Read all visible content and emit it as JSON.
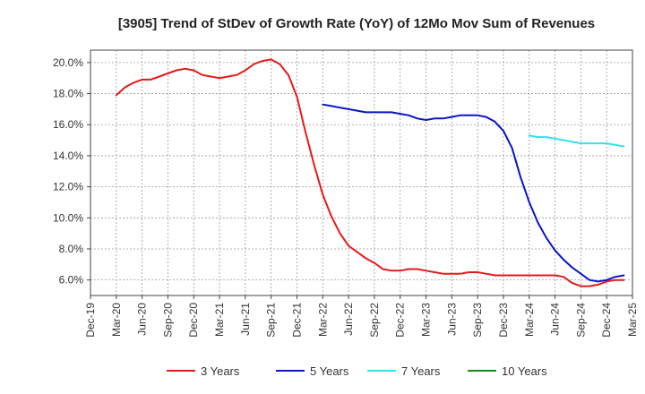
{
  "chart_data": {
    "type": "line",
    "title": "[3905]  Trend of StDev of Growth Rate (YoY) of 12Mo Mov Sum of Revenues",
    "xlabel": "",
    "ylabel": "",
    "ylim": [
      5.0,
      20.8
    ],
    "y_ticks": [
      6.0,
      8.0,
      10.0,
      12.0,
      14.0,
      16.0,
      18.0,
      20.0
    ],
    "y_tick_labels": [
      "6.0%",
      "8.0%",
      "10.0%",
      "12.0%",
      "14.0%",
      "16.0%",
      "18.0%",
      "20.0%"
    ],
    "x_tick_labels": [
      "Dec-19",
      "Mar-20",
      "Jun-20",
      "Sep-20",
      "Dec-20",
      "Mar-21",
      "Jun-21",
      "Sep-21",
      "Dec-21",
      "Mar-22",
      "Jun-22",
      "Sep-22",
      "Dec-22",
      "Mar-23",
      "Jun-23",
      "Sep-23",
      "Dec-23",
      "Mar-24",
      "Jun-24",
      "Sep-24",
      "Dec-24",
      "Mar-25"
    ],
    "grid": true,
    "legend_position": "bottom",
    "series": [
      {
        "name": "3 Years",
        "color": "#e31a1c",
        "start_month": 3,
        "values": [
          17.9,
          18.4,
          18.7,
          18.9,
          18.9,
          19.1,
          19.3,
          19.5,
          19.6,
          19.5,
          19.2,
          19.1,
          19.0,
          19.1,
          19.2,
          19.5,
          19.9,
          20.1,
          20.2,
          19.9,
          19.2,
          17.8,
          15.5,
          13.4,
          11.5,
          10.1,
          9.0,
          8.2,
          7.8,
          7.4,
          7.1,
          6.7,
          6.6,
          6.6,
          6.7,
          6.7,
          6.6,
          6.5,
          6.4,
          6.4,
          6.4,
          6.5,
          6.5,
          6.4,
          6.3,
          6.3,
          6.3,
          6.3,
          6.3,
          6.3,
          6.3,
          6.3,
          6.2,
          5.8,
          5.6,
          5.6,
          5.7,
          5.9,
          6.0,
          6.0
        ]
      },
      {
        "name": "5 Years",
        "color": "#0a14c8",
        "start_month": 27,
        "values": [
          17.3,
          17.2,
          17.1,
          17.0,
          16.9,
          16.8,
          16.8,
          16.8,
          16.8,
          16.7,
          16.6,
          16.4,
          16.3,
          16.4,
          16.4,
          16.5,
          16.6,
          16.6,
          16.6,
          16.5,
          16.2,
          15.6,
          14.5,
          12.6,
          11.0,
          9.7,
          8.7,
          7.9,
          7.3,
          6.8,
          6.4,
          6.0,
          5.9,
          6.0,
          6.2,
          6.3
        ]
      },
      {
        "name": "7 Years",
        "color": "#33e0e8",
        "start_month": 51,
        "values": [
          15.3,
          15.2,
          15.2,
          15.1,
          15.0,
          14.9,
          14.8,
          14.8,
          14.8,
          14.8,
          14.7,
          14.6
        ]
      },
      {
        "name": "10 Years",
        "color": "#1a8a1a",
        "start_month": 0,
        "values": []
      }
    ]
  }
}
